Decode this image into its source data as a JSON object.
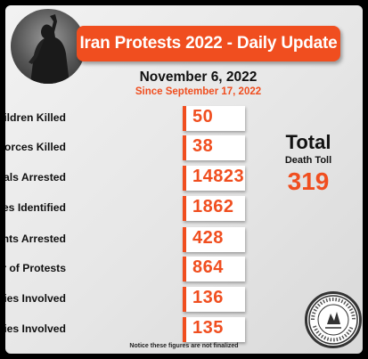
{
  "header": {
    "title": "Iran Protests 2022 - Daily Update",
    "date": "November 6, 2022",
    "since": "Since September 17, 2022"
  },
  "stats": [
    {
      "label": "Number of Children Killed",
      "value": "50"
    },
    {
      "label": "Number of Regime Forces Killed",
      "value": "38"
    },
    {
      "label": "Number of Individuals Arrested",
      "value": "14823"
    },
    {
      "label": "Number of Detainees Identified",
      "value": "1862"
    },
    {
      "label": "Number of Students Arrested",
      "value": "428"
    },
    {
      "label": "Number of Protests",
      "value": "864"
    },
    {
      "label": "Number of Cities Involved",
      "value": "136"
    },
    {
      "label": "Number of Universities Involved",
      "value": "135"
    }
  ],
  "total": {
    "title": "Total",
    "subtitle": "Death Toll",
    "value": "319"
  },
  "notice": "Notice these figures are not finalized",
  "seal_text": "HUMAN RIGHTS ACTIVISTS IN IRAN",
  "colors": {
    "accent": "#f04e1f",
    "text": "#111111",
    "background": "#e8e8e8"
  }
}
